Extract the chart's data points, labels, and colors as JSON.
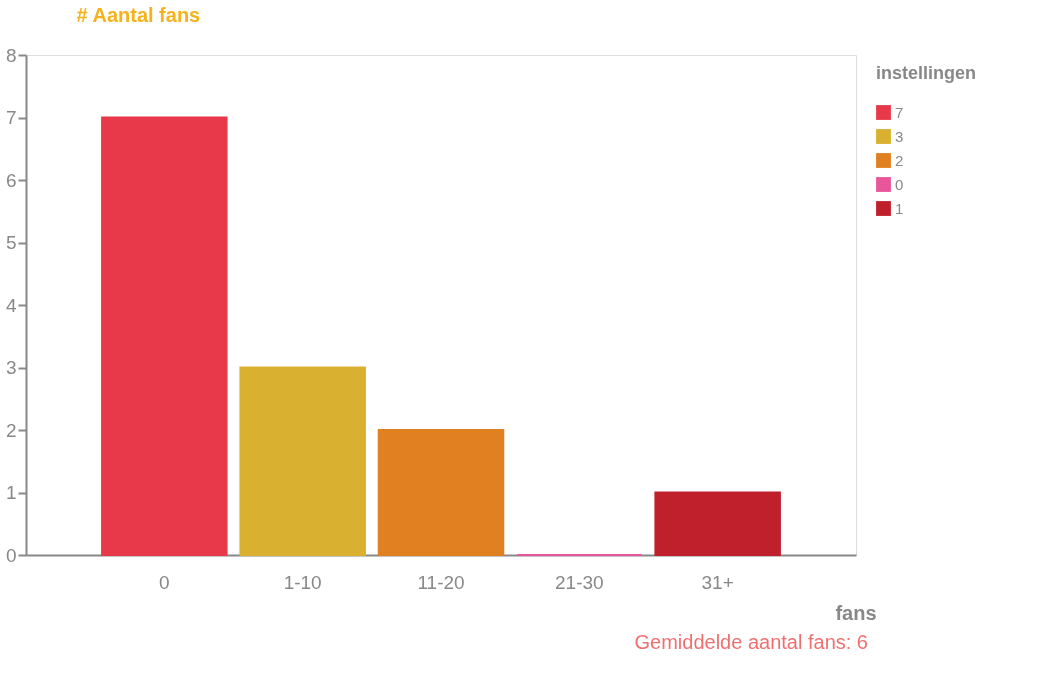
{
  "chart_data": {
    "type": "bar",
    "ylabel": "# Aantal fans",
    "xlabel": "fans",
    "legend_title": "instellingen",
    "categories": [
      "0",
      "1-10",
      "11-20",
      "21-30",
      "31+"
    ],
    "series": [
      {
        "name": "7",
        "color": "#e8394a",
        "values": [
          7,
          null,
          null,
          null,
          null
        ]
      },
      {
        "name": "3",
        "color": "#d9b030",
        "values": [
          null,
          3,
          null,
          null,
          null
        ]
      },
      {
        "name": "2",
        "color": "#e08020",
        "values": [
          null,
          null,
          2,
          null,
          null
        ]
      },
      {
        "name": "0",
        "color": "#e8559a",
        "values": [
          null,
          null,
          null,
          0,
          null
        ]
      },
      {
        "name": "1",
        "color": "#c0202c",
        "values": [
          null,
          null,
          null,
          null,
          1
        ]
      }
    ],
    "ylim": [
      0,
      8
    ],
    "yticks": [
      0,
      1,
      2,
      3,
      4,
      5,
      6,
      7,
      8
    ],
    "grid": false,
    "legend": "top right",
    "annotations": [
      "Gemiddelde aantal fans: 6"
    ]
  }
}
